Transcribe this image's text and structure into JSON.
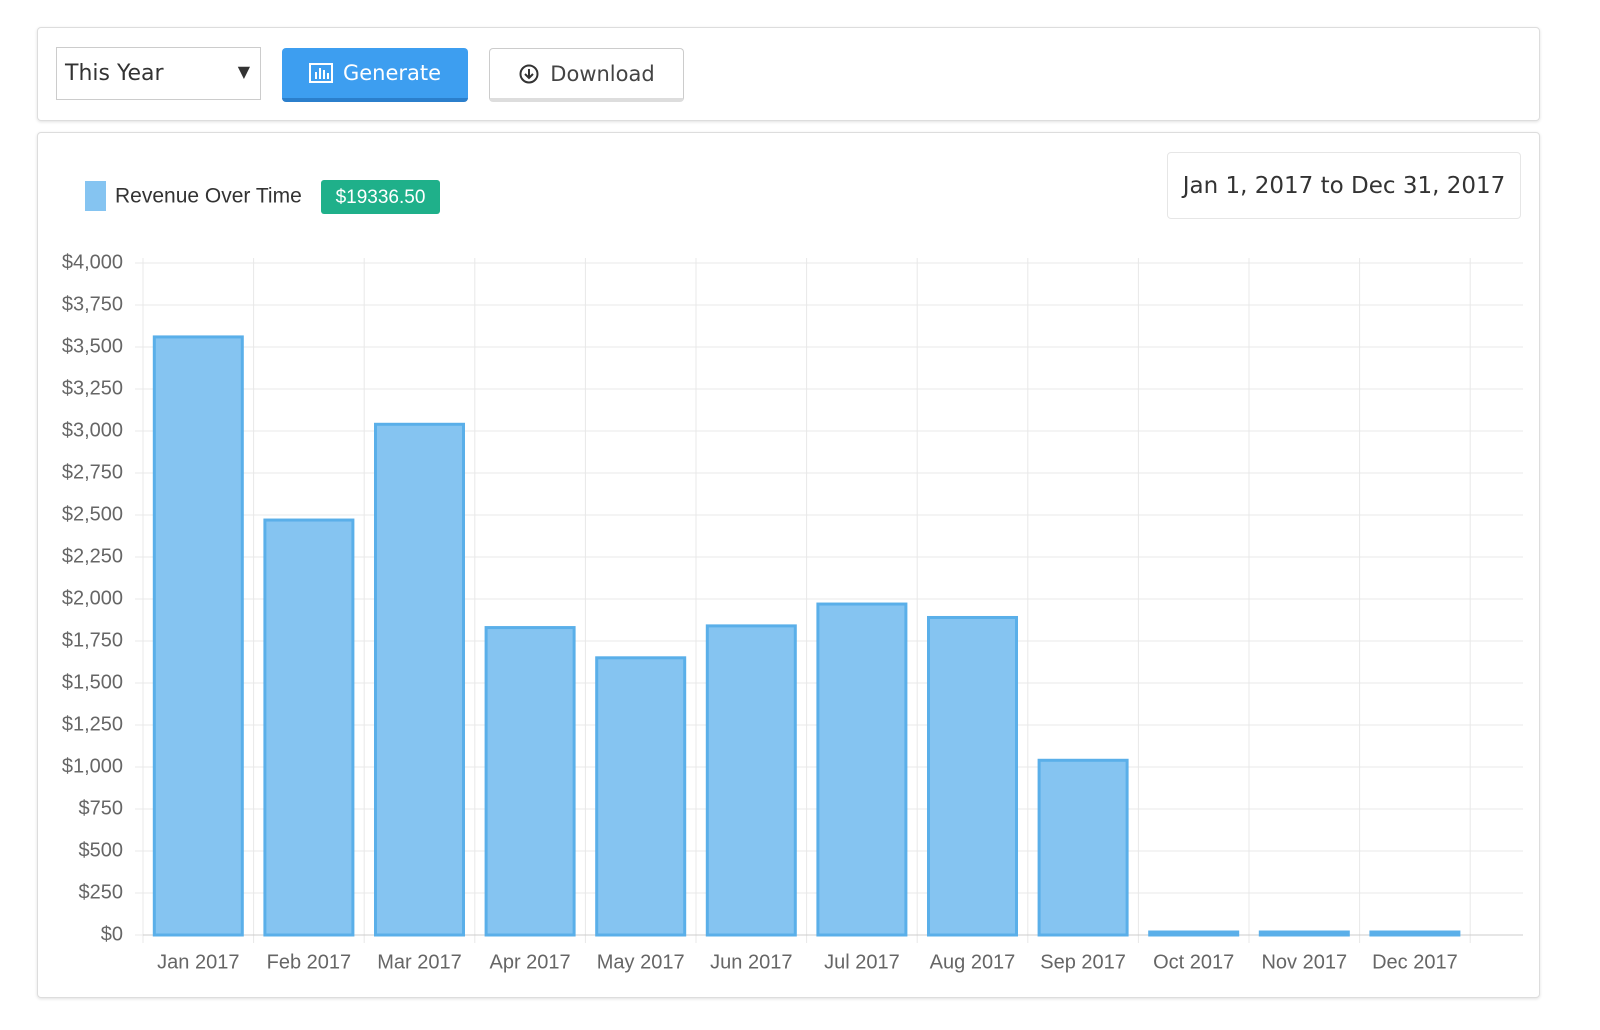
{
  "controls": {
    "period": "This Year",
    "generate": "Generate",
    "download": "Download"
  },
  "chart_data": {
    "type": "bar",
    "date_range": "Jan 1, 2017 to Dec 31, 2017",
    "total": "$19336.50",
    "categories": [
      "Jan 2017",
      "Feb 2017",
      "Mar 2017",
      "Apr 2017",
      "May 2017",
      "Jun 2017",
      "Jul 2017",
      "Aug 2017",
      "Sep 2017",
      "Oct 2017",
      "Nov 2017",
      "Dec 2017"
    ],
    "series": [
      {
        "name": "Revenue Over Time",
        "color": "#85c4f1",
        "border": "#5aafe9",
        "values": [
          3560,
          2470,
          3040,
          1830,
          1650,
          1840,
          1970,
          1890,
          1040,
          0,
          0,
          0
        ]
      }
    ],
    "ylim": [
      0,
      4000
    ],
    "yticks": [
      {
        "value": 0,
        "label": "$0"
      },
      {
        "value": 250,
        "label": "$250"
      },
      {
        "value": 500,
        "label": "$500"
      },
      {
        "value": 750,
        "label": "$750"
      },
      {
        "value": 1000,
        "label": "$1,000"
      },
      {
        "value": 1250,
        "label": "$1,250"
      },
      {
        "value": 1500,
        "label": "$1,500"
      },
      {
        "value": 1750,
        "label": "$1,750"
      },
      {
        "value": 2000,
        "label": "$2,000"
      },
      {
        "value": 2250,
        "label": "$2,250"
      },
      {
        "value": 2500,
        "label": "$2,500"
      },
      {
        "value": 2750,
        "label": "$2,750"
      },
      {
        "value": 3000,
        "label": "$3,000"
      },
      {
        "value": 3250,
        "label": "$3,250"
      },
      {
        "value": 3500,
        "label": "$3,500"
      },
      {
        "value": 3750,
        "label": "$3,750"
      },
      {
        "value": 4000,
        "label": "$4,000"
      }
    ],
    "grid": true
  }
}
